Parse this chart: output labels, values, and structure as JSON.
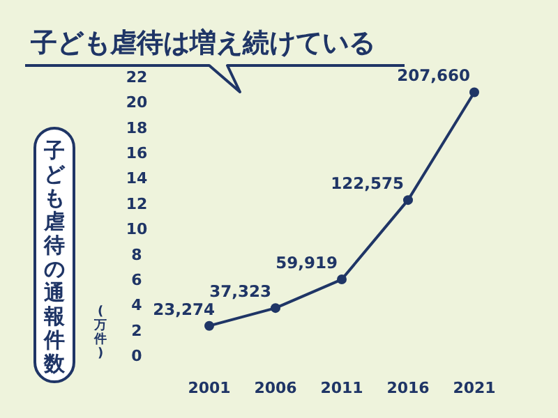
{
  "chart_data": {
    "type": "line",
    "title": "子ども虐待は増え続けている",
    "ylabel": "子ども虐待の通報件数",
    "annotations": [
      "(万件)",
      {
        "text": "23,274",
        "x": "2001",
        "y": 2.3274
      },
      {
        "text": "37,323",
        "x": "2006",
        "y": 3.7323
      },
      {
        "text": "59,919",
        "x": "2011",
        "y": 5.9919
      },
      {
        "text": "122,575",
        "x": "2016",
        "y": 12.2575
      },
      {
        "text": "207,660",
        "x": "2021",
        "y": 20.766
      }
    ],
    "categories": [
      "2001",
      "2006",
      "2011",
      "2016",
      "2021"
    ],
    "series": [
      {
        "color": "#1f3566",
        "values": [
          2.3274,
          3.7323,
          5.9919,
          12.2575,
          20.766
        ]
      }
    ],
    "ylim": [
      0,
      22
    ],
    "yticks": [
      0,
      2,
      4,
      6,
      8,
      10,
      12,
      14,
      16,
      18,
      20,
      22
    ],
    "grid": false,
    "marker": "circle",
    "line_style": "solid"
  }
}
